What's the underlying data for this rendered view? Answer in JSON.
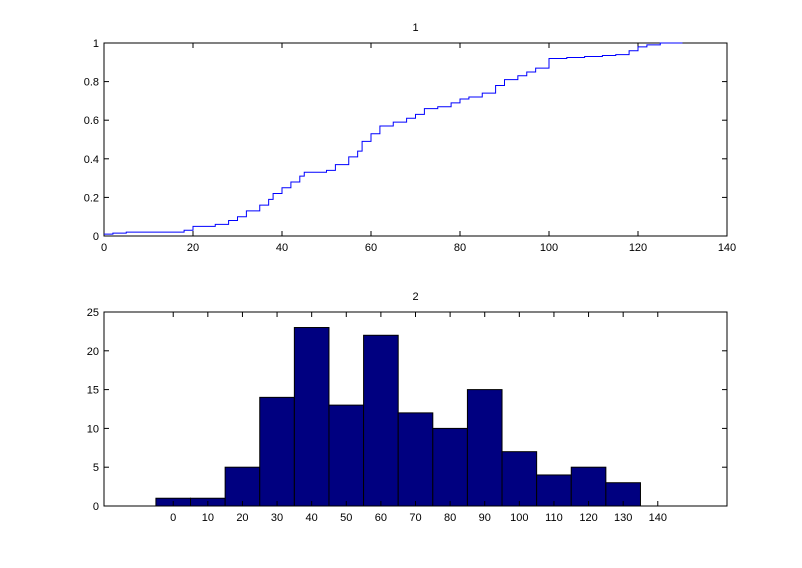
{
  "chart_data": [
    {
      "type": "line",
      "step": true,
      "title": "1",
      "xlim": [
        0,
        140
      ],
      "ylim": [
        0,
        1
      ],
      "xticks": [
        0,
        20,
        40,
        60,
        80,
        100,
        120,
        140
      ],
      "yticks": [
        0,
        0.2,
        0.4,
        0.6,
        0.8,
        1
      ],
      "xtick_labels": [
        "0",
        "20",
        "40",
        "60",
        "80",
        "100",
        "120",
        "140"
      ],
      "ytick_labels": [
        "0",
        "0.2",
        "0.4",
        "0.6",
        "0.8",
        "1"
      ],
      "grid": false,
      "line_color": "#0000ff",
      "x": [
        0,
        2,
        5,
        10,
        18,
        20,
        25,
        28,
        30,
        32,
        35,
        37,
        38,
        40,
        42,
        44,
        45,
        48,
        50,
        52,
        55,
        57,
        58,
        60,
        62,
        65,
        68,
        70,
        72,
        75,
        78,
        80,
        82,
        85,
        88,
        90,
        93,
        95,
        97,
        100,
        104,
        108,
        112,
        115,
        118,
        120,
        122,
        125,
        130
      ],
      "y": [
        0.01,
        0.015,
        0.02,
        0.02,
        0.03,
        0.05,
        0.06,
        0.08,
        0.1,
        0.13,
        0.16,
        0.19,
        0.22,
        0.25,
        0.28,
        0.31,
        0.33,
        0.33,
        0.34,
        0.37,
        0.41,
        0.44,
        0.49,
        0.53,
        0.57,
        0.59,
        0.61,
        0.63,
        0.66,
        0.67,
        0.69,
        0.71,
        0.72,
        0.74,
        0.78,
        0.81,
        0.83,
        0.85,
        0.87,
        0.92,
        0.925,
        0.93,
        0.935,
        0.94,
        0.96,
        0.98,
        0.99,
        1.0,
        1.0
      ]
    },
    {
      "type": "bar",
      "title": "2",
      "xlim": [
        -20,
        160
      ],
      "ylim": [
        0,
        25
      ],
      "yticks": [
        0,
        5,
        10,
        15,
        20,
        25
      ],
      "ytick_labels": [
        "0",
        "5",
        "10",
        "15",
        "20",
        "25"
      ],
      "grid": false,
      "bar_color": "#000080",
      "bar_edge_color": "#000000",
      "categories": [
        "0",
        "10",
        "20",
        "30",
        "40",
        "50",
        "60",
        "70",
        "80",
        "90",
        "100",
        "110",
        "120",
        "130",
        "140"
      ],
      "values": [
        1,
        1,
        5,
        14,
        23,
        13,
        22,
        12,
        10,
        15,
        7,
        4,
        5,
        3,
        0
      ]
    }
  ]
}
